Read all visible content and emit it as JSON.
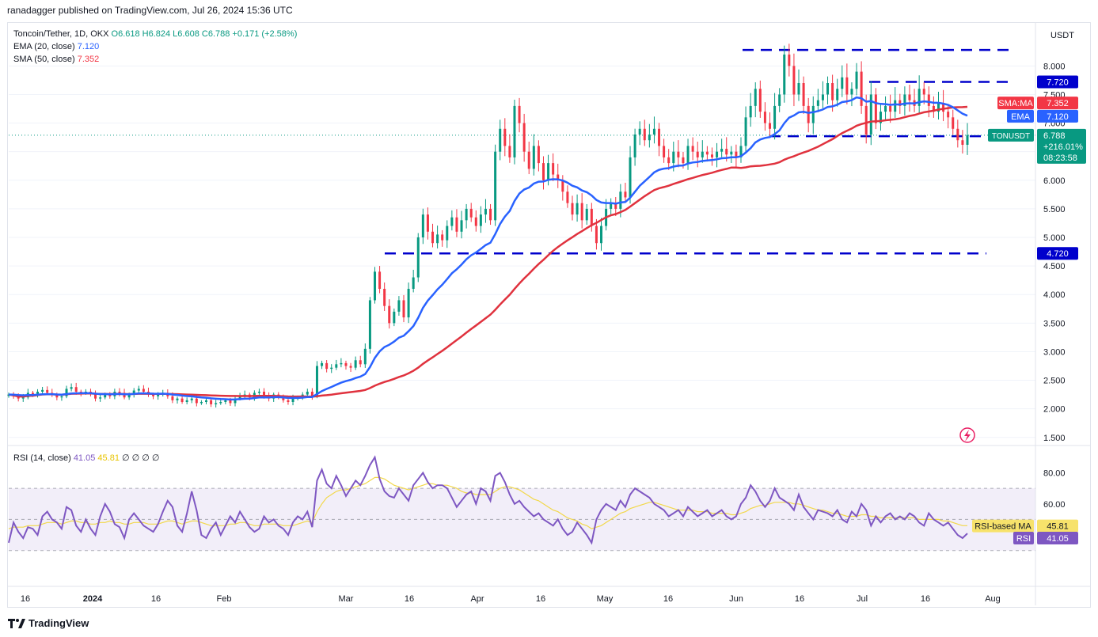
{
  "publisher_line": "ranadagger published on TradingView.com, Jul 26, 2024 15:36 UTC",
  "legend": {
    "symbol": "Toncoin/Tether, 1D, OKX",
    "ohlc": "O6.618 H6.824 L6.608 C6.788 +0.171 (+2.58%)",
    "ema_label": "EMA (20, close)",
    "ema_value": "7.120",
    "sma_label": "SMA (50, close)",
    "sma_value": "7.352"
  },
  "currency_button": "USDT",
  "rsi_legend": {
    "label": "RSI (14, close)",
    "rsi_value": "41.05",
    "ma_value": "45.81",
    "extras": "∅ ∅ ∅ ∅"
  },
  "footer": {
    "brand": "TradingView",
    "logo_icon": "tradingview-logo-icon"
  },
  "chart_data": {
    "type": "candlestick",
    "y_ticks": [
      "8.000",
      "7.500",
      "7.000",
      "6.500",
      "6.000",
      "5.500",
      "5.000",
      "4.500",
      "4.000",
      "3.500",
      "3.000",
      "2.500",
      "2.000",
      "1.500"
    ],
    "ylim": [
      1.4,
      8.6
    ],
    "x_ticks": [
      "16",
      "2024",
      "16",
      "Feb",
      "Mar",
      "16",
      "Apr",
      "16",
      "May",
      "16",
      "Jun",
      "16",
      "Jul",
      "16",
      "Aug"
    ],
    "horizontal_levels": [
      {
        "label": "8.280",
        "value": 8.28,
        "show_label": false
      },
      {
        "label": "7.720",
        "value": 7.72,
        "show_label": true
      },
      {
        "label": "6.770",
        "value": 6.77,
        "show_label": true
      },
      {
        "label": "4.720",
        "value": 4.72,
        "show_label": true
      }
    ],
    "price_close_series": [
      2.25,
      2.22,
      2.18,
      2.2,
      2.28,
      2.25,
      2.3,
      2.33,
      2.28,
      2.25,
      2.2,
      2.22,
      2.35,
      2.38,
      2.3,
      2.28,
      2.3,
      2.26,
      2.18,
      2.2,
      2.25,
      2.22,
      2.3,
      2.28,
      2.2,
      2.25,
      2.32,
      2.35,
      2.3,
      2.25,
      2.22,
      2.25,
      2.28,
      2.22,
      2.15,
      2.18,
      2.12,
      2.15,
      2.18,
      2.1,
      2.12,
      2.15,
      2.08,
      2.1,
      2.12,
      2.15,
      2.1,
      2.18,
      2.22,
      2.25,
      2.2,
      2.28,
      2.3,
      2.22,
      2.18,
      2.25,
      2.2,
      2.15,
      2.12,
      2.18,
      2.2,
      2.25,
      2.3,
      2.22,
      2.75,
      2.8,
      2.7,
      2.72,
      2.78,
      2.8,
      2.75,
      2.72,
      2.85,
      2.78,
      3.05,
      3.9,
      4.4,
      4.1,
      3.8,
      3.5,
      3.7,
      3.9,
      3.6,
      4.1,
      4.3,
      5.0,
      5.4,
      5.1,
      4.9,
      5.05,
      4.95,
      5.2,
      5.35,
      5.1,
      5.3,
      5.5,
      5.35,
      5.2,
      5.4,
      5.5,
      5.3,
      6.5,
      6.9,
      6.6,
      6.4,
      7.3,
      7.0,
      6.5,
      6.2,
      6.6,
      6.3,
      6.0,
      6.3,
      6.1,
      6.0,
      5.8,
      5.6,
      5.4,
      5.6,
      5.3,
      5.5,
      5.2,
      4.9,
      5.2,
      5.5,
      5.6,
      5.5,
      5.8,
      5.7,
      6.4,
      6.8,
      6.9,
      6.7,
      6.8,
      6.9,
      6.6,
      6.4,
      6.3,
      6.5,
      6.4,
      6.3,
      6.6,
      6.5,
      6.4,
      6.5,
      6.45,
      6.4,
      6.5,
      6.55,
      6.45,
      6.5,
      6.4,
      6.6,
      7.1,
      7.3,
      7.6,
      7.2,
      7.0,
      6.9,
      7.3,
      7.5,
      8.2,
      8.0,
      7.5,
      7.7,
      7.3,
      7.0,
      7.3,
      7.4,
      7.5,
      7.7,
      7.4,
      7.6,
      7.8,
      7.5,
      7.6,
      7.9,
      7.3,
      6.8,
      7.5,
      7.0,
      7.2,
      7.3,
      7.2,
      7.4,
      7.3,
      7.5,
      7.4,
      7.3,
      7.6,
      7.5,
      7.3,
      7.2,
      7.35,
      7.2,
      7.1,
      6.9,
      6.7,
      6.62,
      6.79
    ],
    "ema20": {
      "label": "EMA",
      "value": 7.12
    },
    "sma50": {
      "label": "SMA:MA",
      "value": 7.352
    },
    "price_tag": {
      "symbol": "TONUSDT",
      "price": "6.788",
      "change": "+216.01%",
      "countdown": "08:23:58"
    },
    "rsi": {
      "ylim": [
        10,
        95
      ],
      "y_ticks": [
        "80.00",
        "60.00"
      ],
      "band": [
        30,
        70
      ],
      "values": [
        35,
        48,
        42,
        38,
        45,
        44,
        40,
        52,
        55,
        50,
        48,
        44,
        58,
        56,
        46,
        42,
        50,
        44,
        40,
        52,
        60,
        55,
        47,
        45,
        38,
        50,
        54,
        50,
        46,
        44,
        42,
        47,
        55,
        62,
        58,
        46,
        42,
        54,
        68,
        56,
        40,
        38,
        44,
        48,
        40,
        46,
        52,
        48,
        55,
        50,
        45,
        42,
        44,
        52,
        48,
        50,
        46,
        44,
        40,
        48,
        52,
        50,
        55,
        45,
        75,
        82,
        73,
        70,
        78,
        72,
        65,
        70,
        75,
        72,
        78,
        85,
        90,
        76,
        68,
        65,
        64,
        70,
        66,
        62,
        72,
        76,
        80,
        74,
        70,
        72,
        72,
        70,
        64,
        58,
        62,
        66,
        68,
        60,
        70,
        68,
        62,
        78,
        80,
        74,
        66,
        60,
        62,
        58,
        55,
        52,
        54,
        50,
        48,
        46,
        50,
        44,
        40,
        42,
        48,
        44,
        40,
        35,
        50,
        56,
        60,
        58,
        56,
        62,
        58,
        66,
        70,
        68,
        66,
        64,
        60,
        58,
        56,
        52,
        54,
        56,
        52,
        58,
        55,
        52,
        54,
        56,
        52,
        54,
        56,
        52,
        50,
        52,
        60,
        64,
        72,
        68,
        62,
        58,
        62,
        70,
        64,
        62,
        60,
        56,
        66,
        58,
        54,
        50,
        56,
        55,
        54,
        52,
        56,
        50,
        48,
        55,
        52,
        60,
        56,
        46,
        52,
        48,
        52,
        54,
        50,
        52,
        50,
        54,
        52,
        48,
        46,
        54,
        50,
        48,
        46,
        48,
        44,
        40,
        38,
        41
      ],
      "ma_values": [
        44,
        45,
        45,
        45,
        46,
        46,
        46,
        47,
        48,
        48,
        48,
        47,
        48,
        49,
        49,
        48,
        48,
        47,
        47,
        48,
        48,
        49,
        48,
        48,
        47,
        47,
        48,
        48,
        48,
        47,
        47,
        47,
        48,
        49,
        49,
        48,
        47,
        48,
        49,
        49,
        48,
        47,
        46,
        46,
        46,
        46,
        47,
        47,
        48,
        48,
        47,
        46,
        46,
        47,
        47,
        47,
        47,
        46,
        46,
        46,
        47,
        48,
        49,
        48,
        55,
        60,
        64,
        66,
        68,
        69,
        69,
        70,
        71,
        72,
        73,
        75,
        77,
        77,
        76,
        74,
        72,
        71,
        70,
        69,
        70,
        71,
        72,
        73,
        73,
        72,
        72,
        72,
        71,
        70,
        68,
        67,
        67,
        66,
        66,
        66,
        66,
        68,
        70,
        71,
        71,
        70,
        69,
        67,
        65,
        63,
        62,
        60,
        58,
        56,
        55,
        53,
        51,
        50,
        49,
        47,
        46,
        44,
        45,
        46,
        48,
        50,
        52,
        54,
        55,
        57,
        58,
        59,
        60,
        61,
        61,
        60,
        59,
        58,
        57,
        56,
        56,
        56,
        56,
        55,
        55,
        55,
        54,
        54,
        54,
        54,
        53,
        53,
        54,
        55,
        57,
        58,
        59,
        59,
        60,
        61,
        61,
        61,
        61,
        60,
        60,
        59,
        58,
        57,
        56,
        56,
        55,
        54,
        54,
        53,
        52,
        52,
        52,
        53,
        53,
        52,
        52,
        51,
        51,
        51,
        51,
        51,
        51,
        51,
        51,
        50,
        50,
        50,
        50,
        50,
        49,
        49,
        48,
        47,
        46,
        46
      ],
      "rsi_label": "RSI",
      "ma_label": "RSI-based MA"
    }
  }
}
